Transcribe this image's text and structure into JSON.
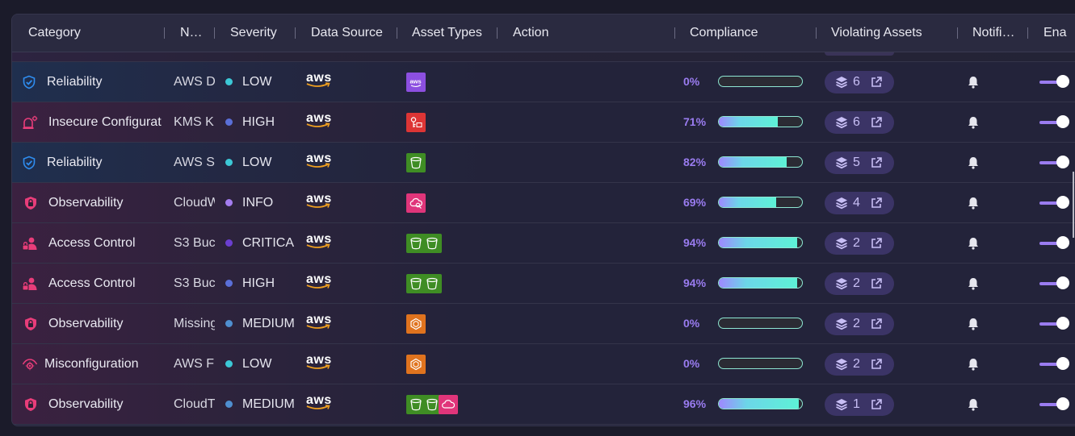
{
  "columns": [
    {
      "key": "category",
      "label": "Category"
    },
    {
      "key": "name",
      "label": "N…"
    },
    {
      "key": "severity",
      "label": "Severity"
    },
    {
      "key": "data_source",
      "label": "Data Source"
    },
    {
      "key": "asset_types",
      "label": "Asset Types"
    },
    {
      "key": "action",
      "label": "Action"
    },
    {
      "key": "compliance",
      "label": "Compliance"
    },
    {
      "key": "violating_assets",
      "label": "Violating Assets"
    },
    {
      "key": "notifications",
      "label": "Notifi…"
    },
    {
      "key": "enabled",
      "label": "Ena"
    }
  ],
  "colors": {
    "accent": "#9a7cf0",
    "compliance_border": "#8ee8d3",
    "sev_low": "#3cc8d6",
    "sev_high": "#5a6fd8",
    "sev_info": "#a47df0",
    "sev_critical": "#6b3fd0",
    "sev_medium": "#4f8fd0"
  },
  "rows": [
    {
      "tone": "blue",
      "category": "Reliability",
      "category_icon": "shield-check-icon",
      "name": "AWS D",
      "severity": "LOW",
      "sev_color": "#3cc8d6",
      "data_source": "aws",
      "asset_types": [
        {
          "icon": "aws-service-icon",
          "color": "#8c4fe0"
        }
      ],
      "compliance": "0%",
      "compliance_value": 0,
      "violating": "6",
      "enabled": true
    },
    {
      "tone": "pink",
      "category": "Insecure Configurat",
      "category_icon": "alarm-settings-icon",
      "name": "KMS K",
      "severity": "HIGH",
      "sev_color": "#5a6fd8",
      "data_source": "aws",
      "asset_types": [
        {
          "icon": "kms-key-icon",
          "color": "#dd3535"
        }
      ],
      "compliance": "71%",
      "compliance_value": 71,
      "violating": "6",
      "enabled": true
    },
    {
      "tone": "blue",
      "category": "Reliability",
      "category_icon": "shield-check-icon",
      "name": "AWS S",
      "severity": "LOW",
      "sev_color": "#3cc8d6",
      "data_source": "aws",
      "asset_types": [
        {
          "icon": "s3-bucket-icon",
          "color": "#3f8d24"
        }
      ],
      "compliance": "82%",
      "compliance_value": 82,
      "violating": "5",
      "enabled": true
    },
    {
      "tone": "pink",
      "category": "Observability",
      "category_icon": "shield-lock-icon",
      "name": "CloudW",
      "severity": "INFO",
      "sev_color": "#a47df0",
      "data_source": "aws",
      "asset_types": [
        {
          "icon": "cloudwatch-icon",
          "color": "#e0357a"
        }
      ],
      "compliance": "69%",
      "compliance_value": 69,
      "violating": "4",
      "enabled": true
    },
    {
      "tone": "pink",
      "category": "Access Control",
      "category_icon": "user-lock-icon",
      "name": "S3 Buc",
      "severity": "CRITICA",
      "sev_color": "#6b3fd0",
      "data_source": "aws",
      "asset_types": [
        {
          "icon": "s3-bucket-icon",
          "color": "#3f8d24"
        },
        {
          "icon": "s3-bucket-icon",
          "color": "#3f8d24"
        }
      ],
      "compliance": "94%",
      "compliance_value": 94,
      "violating": "2",
      "enabled": true
    },
    {
      "tone": "pink",
      "category": "Access Control",
      "category_icon": "user-lock-icon",
      "name": "S3 Buc",
      "severity": "HIGH",
      "sev_color": "#5a6fd8",
      "data_source": "aws",
      "asset_types": [
        {
          "icon": "s3-bucket-icon",
          "color": "#3f8d24"
        },
        {
          "icon": "s3-bucket-icon",
          "color": "#3f8d24"
        }
      ],
      "compliance": "94%",
      "compliance_value": 94,
      "violating": "2",
      "enabled": true
    },
    {
      "tone": "pink",
      "category": "Observability",
      "category_icon": "shield-lock-icon",
      "name": "Missing",
      "severity": "MEDIUM",
      "sev_color": "#4f8fd0",
      "data_source": "aws",
      "asset_types": [
        {
          "icon": "ec2-chip-icon",
          "color": "#e0731e"
        }
      ],
      "compliance": "0%",
      "compliance_value": 0,
      "violating": "2",
      "enabled": true
    },
    {
      "tone": "pink",
      "category": "Misconfiguration",
      "category_icon": "eye-gear-icon",
      "name": "AWS F",
      "severity": "LOW",
      "sev_color": "#3cc8d6",
      "data_source": "aws",
      "asset_types": [
        {
          "icon": "ec2-chip-icon",
          "color": "#e0731e"
        }
      ],
      "compliance": "0%",
      "compliance_value": 0,
      "violating": "2",
      "enabled": true
    },
    {
      "tone": "pink",
      "category": "Observability",
      "category_icon": "shield-lock-icon",
      "name": "CloudT",
      "severity": "MEDIUM",
      "sev_color": "#4f8fd0",
      "data_source": "aws",
      "asset_types": [
        {
          "icon": "s3-bucket-icon",
          "color": "#3f8d24"
        },
        {
          "icon": "s3-bucket-icon",
          "color": "#3f8d24"
        },
        {
          "icon": "cloud-icon",
          "color": "#e0357a"
        }
      ],
      "compliance": "96%",
      "compliance_value": 96,
      "violating": "1",
      "enabled": true
    }
  ]
}
